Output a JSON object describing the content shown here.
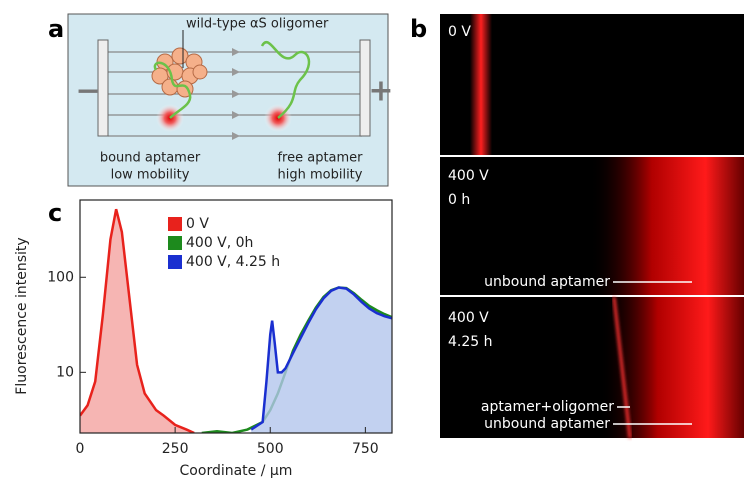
{
  "panel_labels": [
    "a",
    "b",
    "c"
  ],
  "schematic": {
    "oligomer_label": "wild-type αS oligomer",
    "bound": [
      "bound aptamer",
      "low mobility"
    ],
    "free": [
      "free aptamer",
      "high mobility"
    ],
    "cathode": "−",
    "anode": "+"
  },
  "gel_images": [
    {
      "labels": [
        "0 V"
      ]
    },
    {
      "labels": [
        "400 V",
        "0 h"
      ],
      "annotations": [
        "unbound aptamer"
      ]
    },
    {
      "labels": [
        "400 V",
        "4.25 h"
      ],
      "annotations": [
        "aptamer+oligomer",
        "unbound aptamer"
      ]
    }
  ],
  "chart_data": {
    "type": "line",
    "log_y": true,
    "xlabel": "Coordinate / µm",
    "ylabel": "Fluorescence intensity",
    "xlim": [
      0,
      820
    ],
    "ylim": [
      2.3,
      650
    ],
    "xticks": [
      0,
      250,
      500,
      750
    ],
    "yticks": [
      10,
      100
    ],
    "series": [
      {
        "name": "0 V",
        "color": "#e8221c",
        "fill": "#f4a3a0",
        "x": [
          0,
          20,
          40,
          60,
          80,
          95,
          110,
          130,
          150,
          170,
          200,
          220,
          250,
          280,
          300
        ],
        "values": [
          3.5,
          4.5,
          8,
          40,
          250,
          520,
          300,
          60,
          12,
          6,
          4,
          3.5,
          2.8,
          2.5,
          2.3
        ]
      },
      {
        "name": "400 V, 0h",
        "color": "#1d8a1d",
        "x": [
          320,
          360,
          400,
          440,
          480,
          500,
          520,
          540,
          560,
          580,
          600,
          620,
          640,
          660,
          680,
          700,
          720,
          740,
          760,
          780,
          800,
          820
        ],
        "values": [
          2.3,
          2.4,
          2.3,
          2.5,
          3,
          4,
          6,
          10,
          17,
          25,
          35,
          48,
          62,
          73,
          78,
          77,
          68,
          58,
          50,
          45,
          41,
          38
        ]
      },
      {
        "name": "400 V, 4.25 h",
        "color": "#1a2fd0",
        "fill": "#b3c6ec",
        "x": [
          450,
          480,
          490,
          500,
          505,
          512,
          520,
          530,
          540,
          560,
          580,
          600,
          620,
          640,
          660,
          680,
          700,
          720,
          740,
          760,
          780,
          800,
          820
        ],
        "values": [
          2.5,
          3,
          8,
          25,
          35,
          20,
          10,
          10,
          11,
          16,
          23,
          33,
          46,
          60,
          72,
          78,
          76,
          66,
          55,
          47,
          42,
          39,
          37
        ]
      }
    ]
  }
}
